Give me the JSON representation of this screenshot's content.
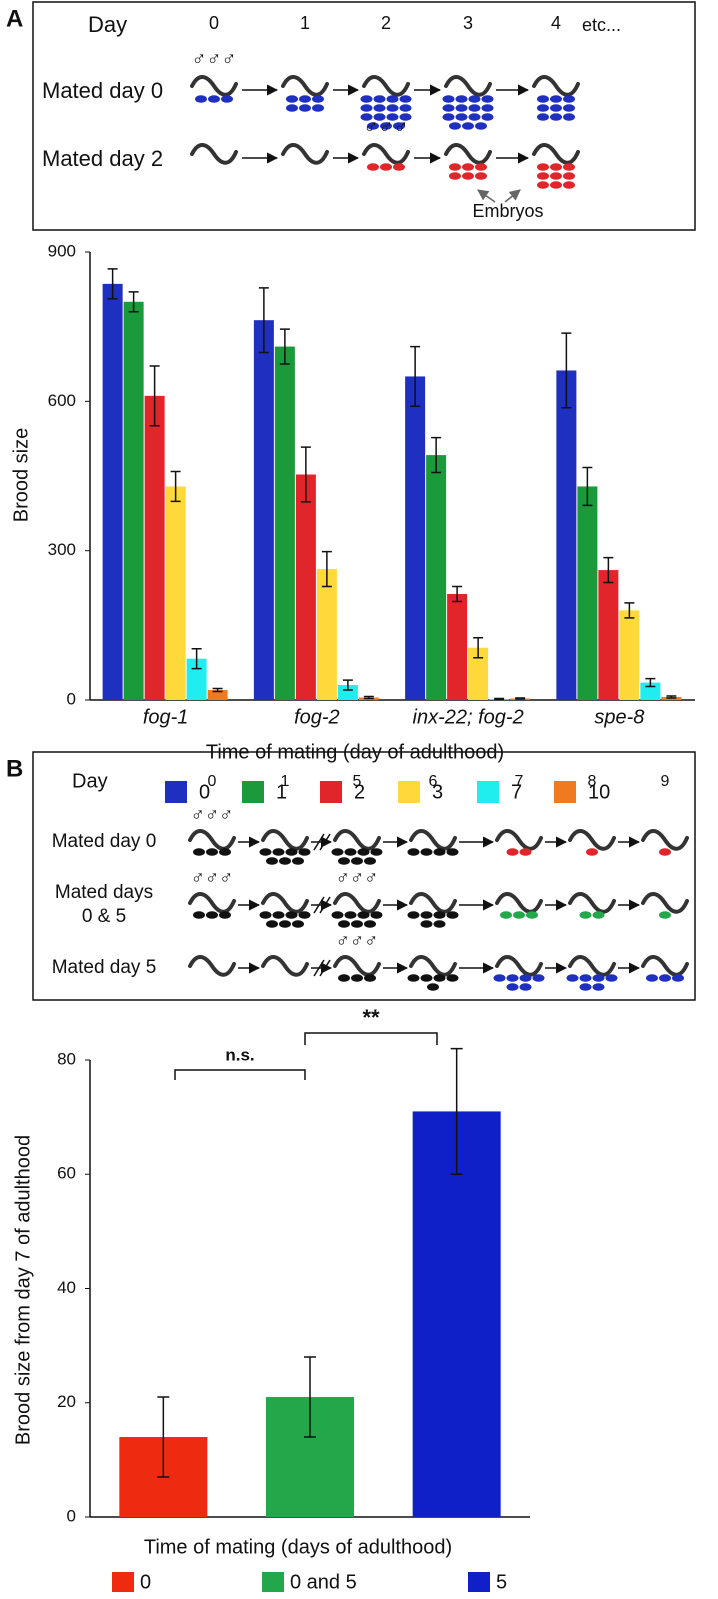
{
  "panel_labels": [
    "A",
    "B"
  ],
  "schematic_a": {
    "day_label": "Day",
    "days": [
      "0",
      "1",
      "2",
      "3",
      "4",
      "etc..."
    ],
    "male_symbol": "♂♂♂",
    "rows": [
      {
        "label_lines": [
          "Mated day 0"
        ]
      },
      {
        "label_lines": [
          "Mated day 2"
        ]
      }
    ],
    "embryo_label": "Embryos"
  },
  "schematic_b": {
    "day_label": "Day",
    "days": [
      "0",
      "1",
      "5",
      "6",
      "7",
      "8",
      "9"
    ],
    "male_symbol": "♂♂♂",
    "rows": [
      {
        "label_lines": [
          "Mated day 0"
        ]
      },
      {
        "label_lines": [
          "Mated days",
          "0 & 5"
        ]
      },
      {
        "label_lines": [
          "Mated day 5"
        ]
      }
    ]
  },
  "chart_data": [
    {
      "type": "bar",
      "ylabel": "Brood size",
      "xlabel": "Time of mating (day of adulthood)",
      "categories": [
        "fog-1",
        "fog-2",
        "inx-22; fog-2",
        "spe-8"
      ],
      "ylim": [
        0,
        900
      ],
      "yticks": [
        0,
        300,
        600,
        900
      ],
      "series": [
        {
          "name": "0",
          "color": "#1f2fbf",
          "values": [
            836,
            763,
            650,
            662
          ],
          "errors": [
            30,
            65,
            60,
            75
          ]
        },
        {
          "name": "1",
          "color": "#1a9a3a",
          "values": [
            800,
            710,
            492,
            429
          ],
          "errors": [
            20,
            35,
            35,
            38
          ]
        },
        {
          "name": "2",
          "color": "#e0262a",
          "values": [
            611,
            453,
            213,
            261
          ],
          "errors": [
            60,
            55,
            15,
            25
          ]
        },
        {
          "name": "3",
          "color": "#ffd83a",
          "values": [
            429,
            263,
            105,
            180
          ],
          "errors": [
            30,
            35,
            20,
            15
          ]
        },
        {
          "name": "7",
          "color": "#20eeee",
          "values": [
            83,
            30,
            2,
            35
          ],
          "errors": [
            20,
            10,
            1,
            8
          ]
        },
        {
          "name": "10",
          "color": "#f07a20",
          "values": [
            20,
            5,
            3,
            6
          ],
          "errors": [
            3,
            2,
            1,
            2
          ]
        }
      ]
    },
    {
      "type": "bar",
      "ylabel": "Brood size from day 7 of adulthood",
      "xlabel": "Time of mating (days of adulthood)",
      "categories": [
        "0",
        "0 and 5",
        "5"
      ],
      "colors": [
        "#ee2a10",
        "#22a84a",
        "#1020c8"
      ],
      "values": [
        14,
        21,
        71
      ],
      "errors": [
        7,
        7,
        11
      ],
      "ylim": [
        0,
        80
      ],
      "yticks": [
        0,
        20,
        40,
        60,
        80
      ],
      "annotations": [
        {
          "text": "n.s."
        },
        {
          "text": "**"
        }
      ]
    }
  ]
}
